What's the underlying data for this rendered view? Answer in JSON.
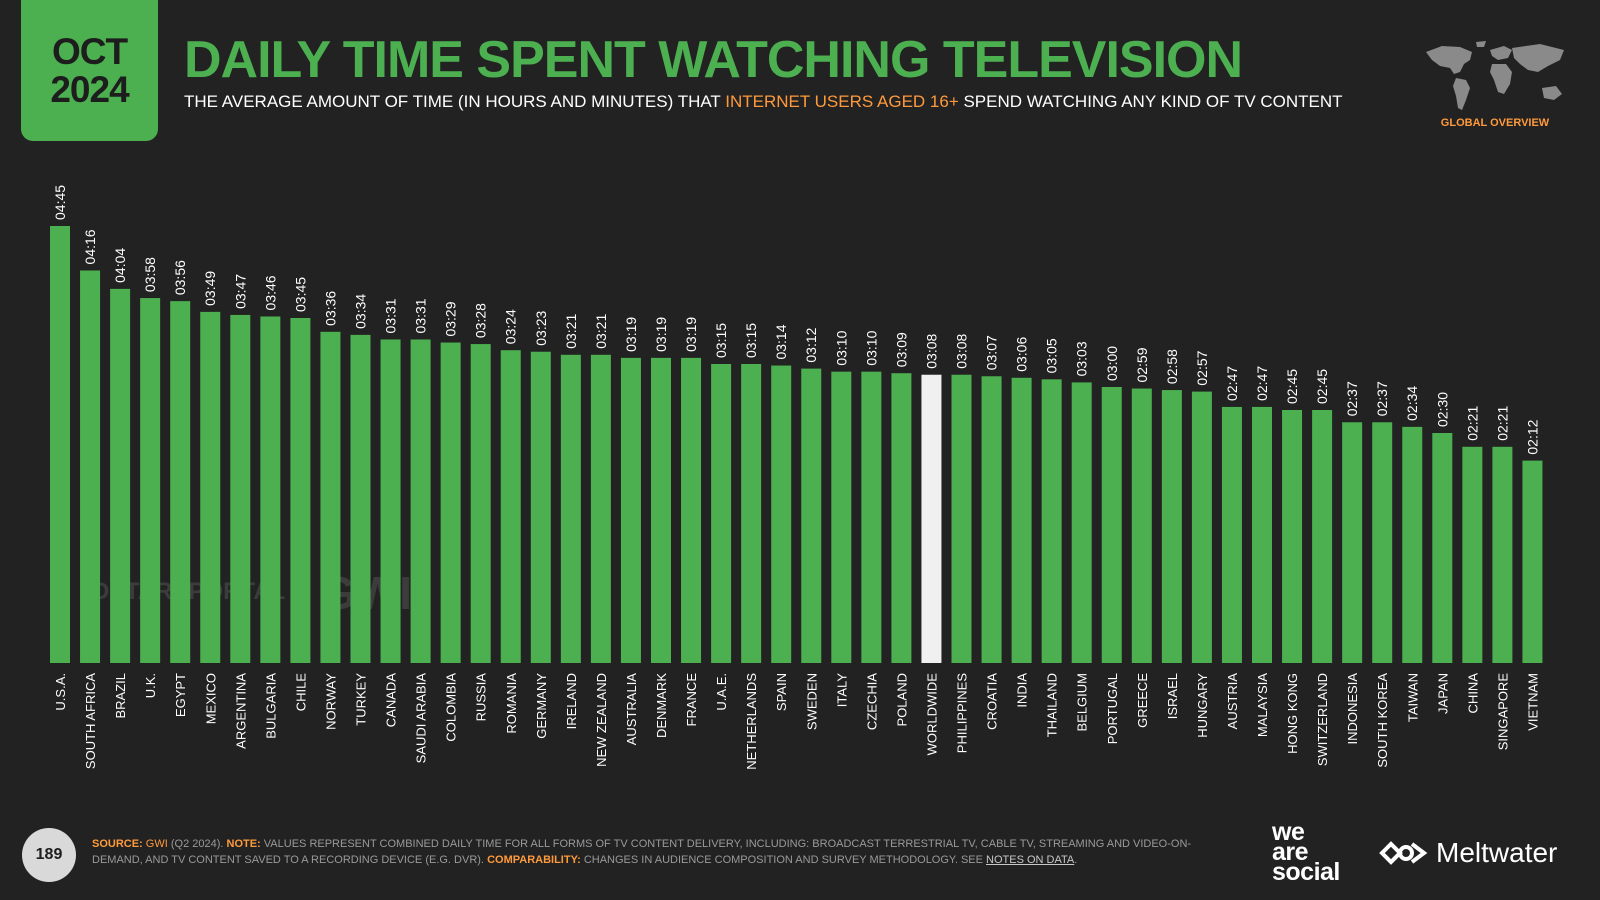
{
  "badge": {
    "month": "OCT",
    "year": "2024"
  },
  "header": {
    "title": "DAILY TIME SPENT WATCHING TELEVISION",
    "subtitle_pre": "THE AVERAGE AMOUNT OF TIME (IN HOURS AND MINUTES) THAT ",
    "subtitle_highlight": "INTERNET USERS AGED 16+",
    "subtitle_post": " SPEND WATCHING ANY KIND OF TV CONTENT"
  },
  "region_label": "GLOBAL OVERVIEW",
  "watermarks": {
    "datareportal": "DATAREPORTAL",
    "gwi": "GWI."
  },
  "colors": {
    "accent": "#4caf50",
    "highlight_bar": "#f0f0f0",
    "orange": "#ff9a3c",
    "background": "#222222"
  },
  "chart_data": {
    "type": "bar",
    "categories": [
      "U.S.A.",
      "SOUTH AFRICA",
      "BRAZIL",
      "U.K.",
      "EGYPT",
      "MEXICO",
      "ARGENTINA",
      "BULGARIA",
      "CHILE",
      "NORWAY",
      "TURKEY",
      "CANADA",
      "SAUDI ARABIA",
      "COLOMBIA",
      "RUSSIA",
      "ROMANIA",
      "GERMANY",
      "IRELAND",
      "NEW ZEALAND",
      "AUSTRALIA",
      "DENMARK",
      "FRANCE",
      "U.A.E.",
      "NETHERLANDS",
      "SPAIN",
      "SWEDEN",
      "ITALY",
      "CZECHIA",
      "POLAND",
      "WORLDWIDE",
      "PHILIPPINES",
      "CROATIA",
      "INDIA",
      "THAILAND",
      "BELGIUM",
      "PORTUGAL",
      "GREECE",
      "ISRAEL",
      "HUNGARY",
      "AUSTRIA",
      "MALAYSIA",
      "HONG KONG",
      "SWITZERLAND",
      "INDONESIA",
      "SOUTH KOREA",
      "TAIWAN",
      "JAPAN",
      "CHINA",
      "SINGAPORE",
      "VIETNAM"
    ],
    "labels": [
      "04:45",
      "04:16",
      "04:04",
      "03:58",
      "03:56",
      "03:49",
      "03:47",
      "03:46",
      "03:45",
      "03:36",
      "03:34",
      "03:31",
      "03:31",
      "03:29",
      "03:28",
      "03:24",
      "03:23",
      "03:21",
      "03:21",
      "03:19",
      "03:19",
      "03:19",
      "03:15",
      "03:15",
      "03:14",
      "03:12",
      "03:10",
      "03:10",
      "03:09",
      "03:08",
      "03:08",
      "03:07",
      "03:06",
      "03:05",
      "03:03",
      "03:00",
      "02:59",
      "02:58",
      "02:57",
      "02:47",
      "02:47",
      "02:45",
      "02:45",
      "02:37",
      "02:37",
      "02:34",
      "02:30",
      "02:21",
      "02:21",
      "02:12"
    ],
    "values_minutes": [
      285,
      256,
      244,
      238,
      236,
      229,
      227,
      226,
      225,
      216,
      214,
      211,
      211,
      209,
      208,
      204,
      203,
      201,
      201,
      199,
      199,
      199,
      195,
      195,
      194,
      192,
      190,
      190,
      189,
      188,
      188,
      187,
      186,
      185,
      183,
      180,
      179,
      178,
      177,
      167,
      167,
      165,
      165,
      157,
      157,
      154,
      150,
      141,
      141,
      132
    ],
    "highlight_category": "WORLDWIDE"
  },
  "footer": {
    "page_number": "189",
    "source_label": "SOURCE:",
    "source_link": "GWI",
    "source_text": " (Q2 2024). ",
    "note_label": "NOTE:",
    "note_text": " VALUES REPRESENT COMBINED DAILY TIME FOR ALL FORMS OF TV CONTENT DELIVERY, INCLUDING: BROADCAST TERRESTRIAL TV, CABLE TV, STREAMING AND VIDEO-ON-DEMAND, AND TV CONTENT SAVED TO A RECORDING DEVICE (E.G. DVR). ",
    "comparability_label": "COMPARABILITY:",
    "comparability_text": " CHANGES IN AUDIENCE COMPOSITION AND SURVEY METHODOLOGY. SEE ",
    "notes_link": "NOTES ON DATA",
    "notes_end": "."
  },
  "logos": {
    "we": "we",
    "are": "are",
    "social": "social",
    "meltwater": "Meltwater"
  }
}
